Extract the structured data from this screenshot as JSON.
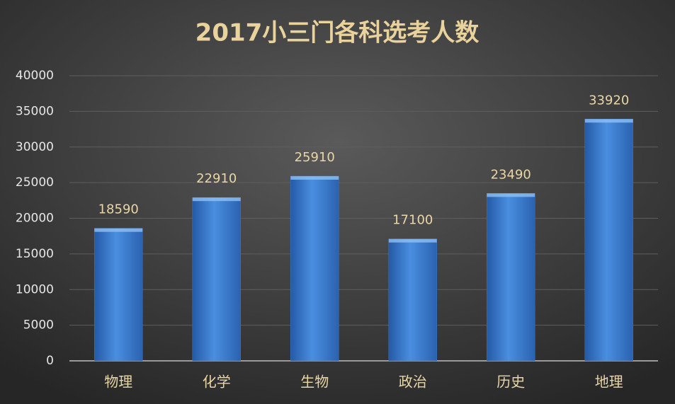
{
  "chart_data": {
    "type": "bar",
    "title": "2017小三门各科选考人数",
    "categories": [
      "物理",
      "化学",
      "生物",
      "政治",
      "历史",
      "地理"
    ],
    "values": [
      18590,
      22910,
      25910,
      17100,
      23490,
      33920
    ],
    "color": "#3d7ccc",
    "ylim": [
      0,
      40000
    ],
    "yticks": [
      0,
      5000,
      10000,
      15000,
      20000,
      25000,
      30000,
      35000,
      40000
    ],
    "grid": true
  }
}
